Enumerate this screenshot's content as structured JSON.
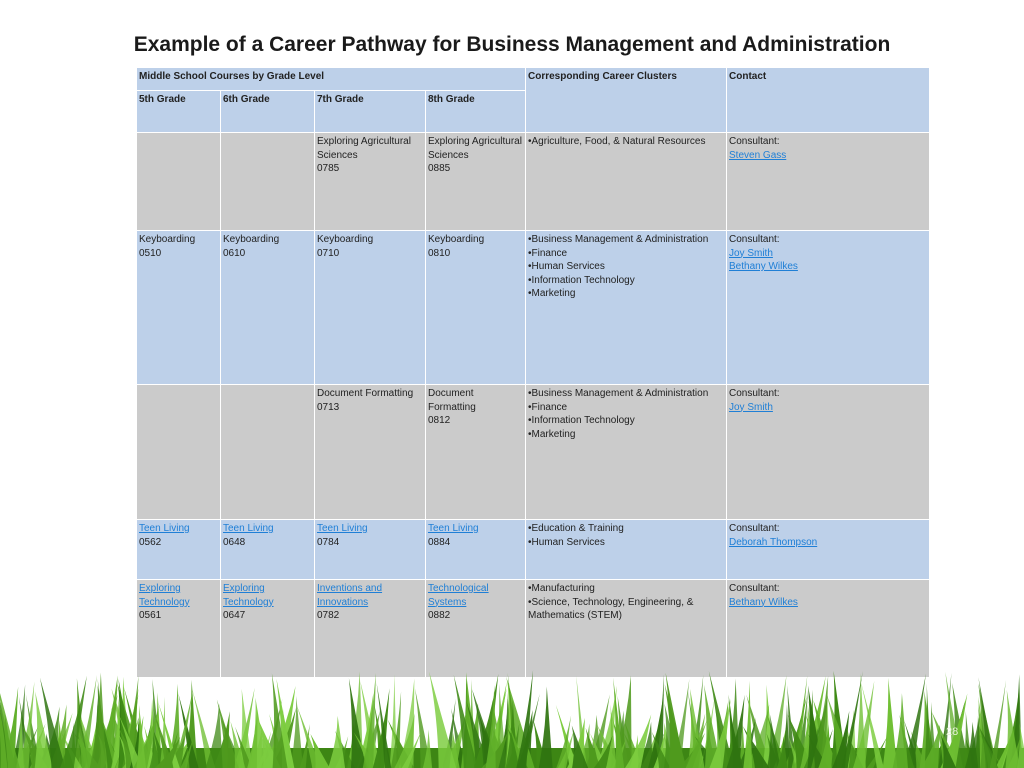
{
  "title": "Example of a Career Pathway for Business Management and Administration",
  "header": {
    "group": "Middle School Courses by Grade Level",
    "clusters": "Corresponding Career Clusters",
    "contact": "Contact",
    "grades": [
      "5th Grade",
      "6th Grade",
      "7th Grade",
      "8th Grade"
    ]
  },
  "rows": [
    {
      "grade5": [],
      "grade6": [],
      "grade7": [
        {
          "text": "Exploring Agricultural Sciences",
          "link": false
        },
        {
          "text": "0785",
          "link": false
        }
      ],
      "grade8": [
        {
          "text": "Exploring Agricultural Sciences",
          "link": false
        },
        {
          "text": "0885",
          "link": false
        }
      ],
      "clusters": [
        "•Agriculture, Food, & Natural Resources"
      ],
      "contact_label": "Consultant:",
      "contacts": [
        "Steven Gass"
      ]
    },
    {
      "grade5": [
        {
          "text": "Keyboarding",
          "link": false
        },
        {
          "text": "0510",
          "link": false
        }
      ],
      "grade6": [
        {
          "text": "Keyboarding",
          "link": false
        },
        {
          "text": "0610",
          "link": false
        }
      ],
      "grade7": [
        {
          "text": "Keyboarding",
          "link": false
        },
        {
          "text": "0710",
          "link": false
        }
      ],
      "grade8": [
        {
          "text": "Keyboarding",
          "link": false
        },
        {
          "text": "0810",
          "link": false
        }
      ],
      "clusters": [
        "•Business Management & Administration",
        "•Finance",
        "•Human Services",
        "•Information Technology",
        "•Marketing"
      ],
      "contact_label": "Consultant:",
      "contacts": [
        "Joy Smith",
        "Bethany Wilkes"
      ]
    },
    {
      "grade5": [],
      "grade6": [],
      "grade7": [
        {
          "text": "Document Formatting",
          "link": false
        },
        {
          "text": "0713",
          "link": false
        }
      ],
      "grade8": [
        {
          "text": "Document Formatting",
          "link": false
        },
        {
          "text": "0812",
          "link": false
        }
      ],
      "clusters": [
        "•Business Management & Administration",
        "•Finance",
        "•Information Technology",
        "•Marketing"
      ],
      "contact_label": "Consultant:",
      "contacts": [
        "Joy Smith"
      ]
    },
    {
      "grade5": [
        {
          "text": "Teen Living",
          "link": true
        },
        {
          "text": "0562",
          "link": false
        }
      ],
      "grade6": [
        {
          "text": "Teen Living",
          "link": true
        },
        {
          "text": "0648",
          "link": false
        }
      ],
      "grade7": [
        {
          "text": "Teen Living",
          "link": true
        },
        {
          "text": "0784",
          "link": false
        }
      ],
      "grade8": [
        {
          "text": "Teen Living",
          "link": true
        },
        {
          "text": "0884",
          "link": false
        }
      ],
      "clusters": [
        "•Education & Training",
        "•Human Services"
      ],
      "contact_label": "Consultant:",
      "contacts": [
        "Deborah Thompson"
      ]
    },
    {
      "grade5": [
        {
          "text": "Exploring Technology",
          "link": true
        },
        {
          "text": "0561",
          "link": false
        }
      ],
      "grade6": [
        {
          "text": "Exploring Technology",
          "link": true
        },
        {
          "text": "0647",
          "link": false
        }
      ],
      "grade7": [
        {
          "text": "Inventions and Innovations",
          "link": true
        },
        {
          "text": "0782",
          "link": false
        }
      ],
      "grade8": [
        {
          "text": "Technological Systems",
          "link": true
        },
        {
          "text": "0882",
          "link": false
        }
      ],
      "clusters": [
        "•Manufacturing",
        "•Science, Technology, Engineering, & Mathematics (STEM)"
      ],
      "contact_label": "Consultant:",
      "contacts": [
        "Bethany Wilkes"
      ]
    }
  ],
  "page_number": "28",
  "colors": {
    "header_blue": "#bdd0e9",
    "row_gray": "#cbcbcb",
    "link": "#1f7fd6",
    "grass": "#4f9a1e"
  }
}
